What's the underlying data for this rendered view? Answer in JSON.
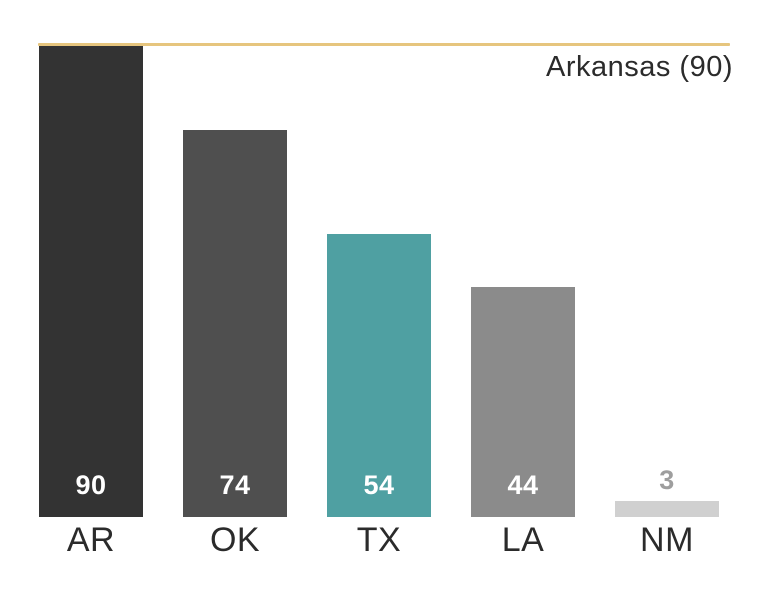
{
  "chart_data": {
    "type": "bar",
    "categories": [
      "AR",
      "OK",
      "TX",
      "LA",
      "NM"
    ],
    "values": [
      90,
      74,
      54,
      44,
      3
    ],
    "bar_colors": [
      "#333333",
      "#4f4f4f",
      "#4fa0a2",
      "#8b8b8b",
      "#d0d0d0"
    ],
    "value_label_colors": [
      "#ffffff",
      "#ffffff",
      "#ffffff",
      "#ffffff",
      "#9e9e9e"
    ],
    "value_label_positions": [
      "inside",
      "inside",
      "inside",
      "inside",
      "above"
    ],
    "title": "",
    "xlabel": "",
    "ylabel": "",
    "ylim": [
      0,
      90
    ],
    "grid": false,
    "legend": false,
    "annotation": {
      "text": "Arkansas (90)",
      "value": 90,
      "line_color": "#e6c57e",
      "line_position": "top"
    }
  }
}
